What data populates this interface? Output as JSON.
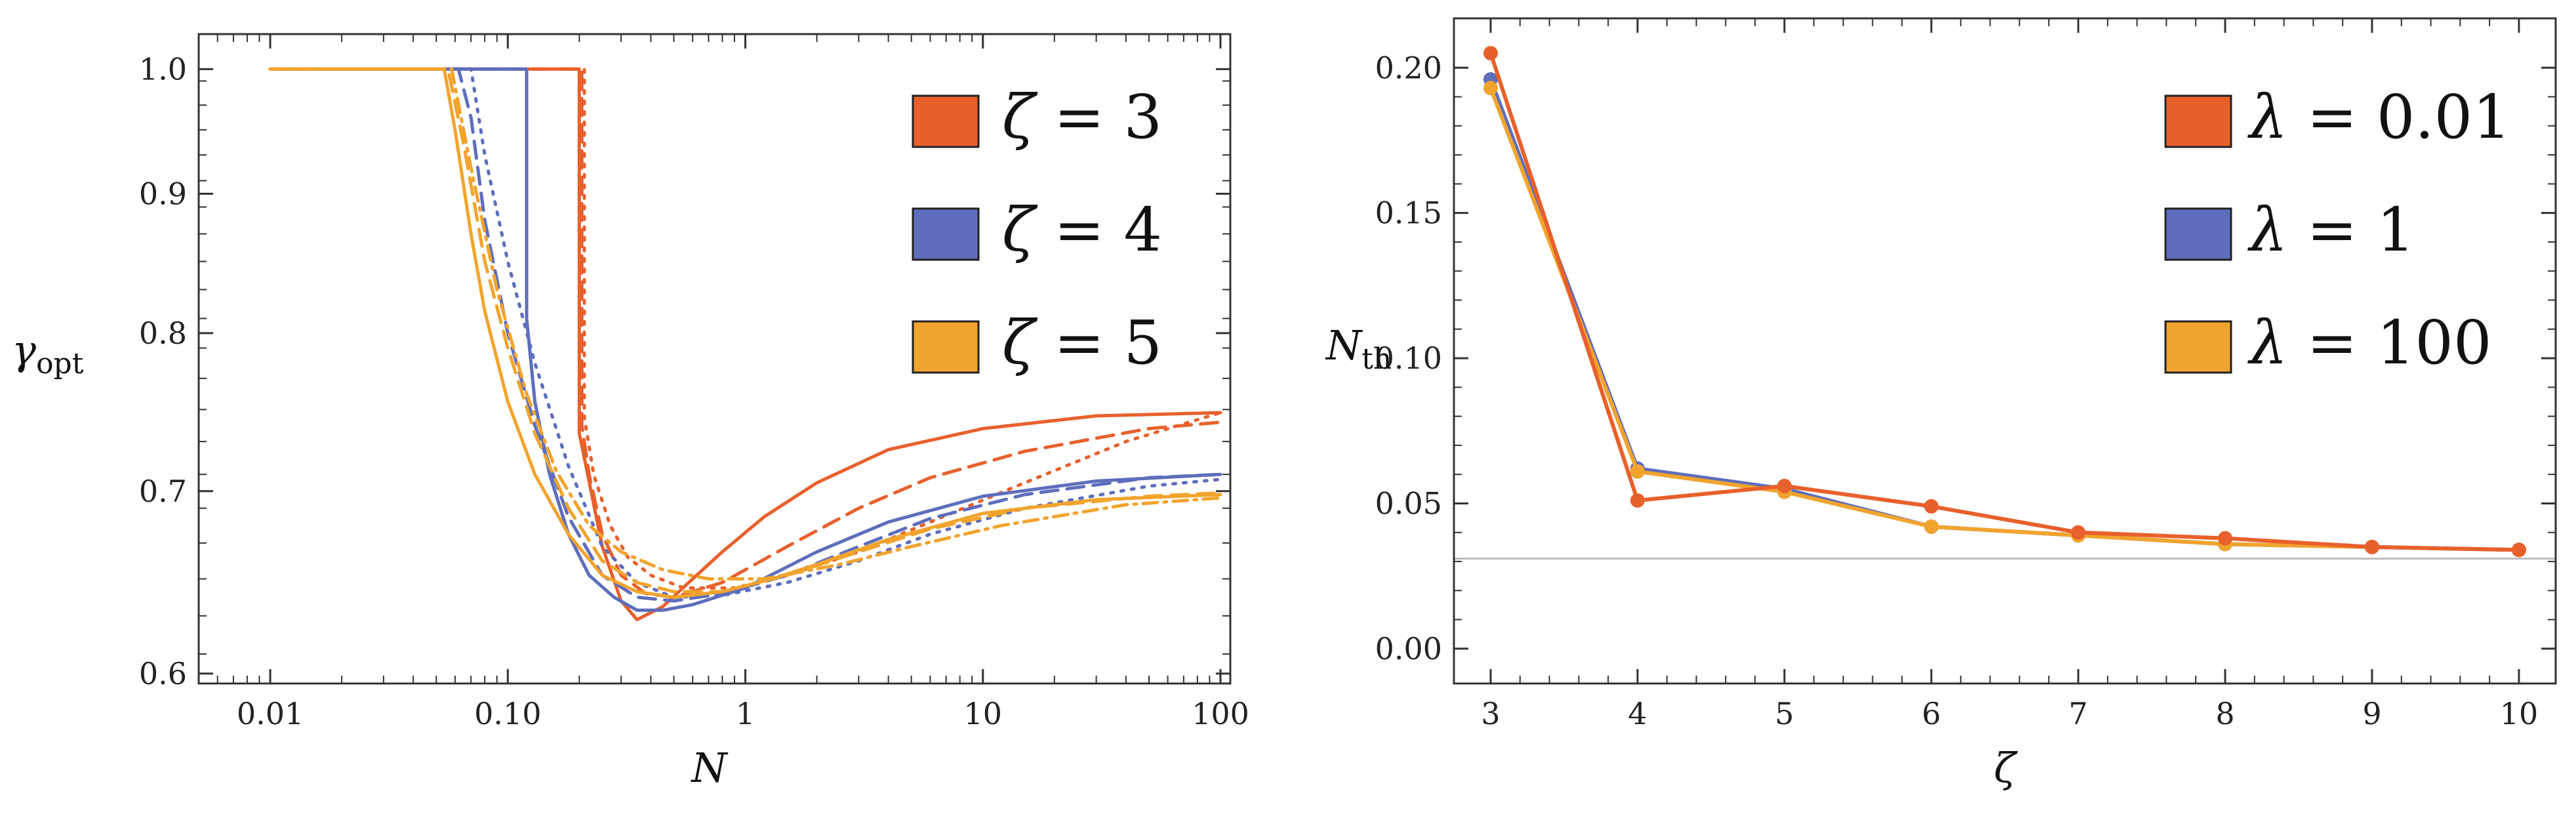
{
  "colors": {
    "red": "#e8602c",
    "blue": "#5e6ebc",
    "orange": "#f1a42d",
    "gray": "#bdbdbd",
    "axis": "#333333"
  },
  "chart_data": [
    {
      "type": "line",
      "xscale": "log",
      "yscale": "log",
      "xlabel": "N",
      "ylabel": {
        "base": "γ",
        "sub": "opt"
      },
      "xlim": [
        0.005,
        110
      ],
      "ylim": [
        0.595,
        1.03
      ],
      "xticks": [
        0.01,
        0.1,
        1,
        10,
        100
      ],
      "xtick_labels": [
        "0.01",
        "0.10",
        "1",
        "10",
        "100"
      ],
      "yticks": [
        0.6,
        0.7,
        0.8,
        0.9,
        1.0
      ],
      "ytick_labels": [
        "0.6",
        "0.7",
        "0.8",
        "0.9",
        "1.0"
      ],
      "legend": {
        "placement": "top-right",
        "entries": [
          {
            "symbol": "ζ",
            "text": " = 3",
            "color": "#e8602c"
          },
          {
            "symbol": "ζ",
            "text": " = 4",
            "color": "#5e6ebc"
          },
          {
            "symbol": "ζ",
            "text": " = 5",
            "color": "#f1a42d"
          }
        ]
      },
      "series": [
        {
          "name": "ζ = 3 (λ = 0.01)",
          "color": "#e8602c",
          "dash": "solid",
          "x": [
            0.01,
            0.2,
            0.2,
            0.21,
            0.25,
            0.3,
            0.35,
            0.45,
            0.6,
            0.8,
            1.2,
            2,
            4,
            10,
            30,
            100
          ],
          "y": [
            1.0,
            1.0,
            0.735,
            0.72,
            0.668,
            0.638,
            0.628,
            0.635,
            0.65,
            0.665,
            0.685,
            0.705,
            0.725,
            0.738,
            0.746,
            0.748
          ]
        },
        {
          "name": "ζ = 3 (λ = 1)",
          "color": "#e8602c",
          "dash": "dashed",
          "x": [
            0.01,
            0.205,
            0.205,
            0.22,
            0.25,
            0.3,
            0.38,
            0.5,
            0.8,
            1.5,
            3,
            6,
            15,
            50,
            100
          ],
          "y": [
            1.0,
            1.0,
            0.74,
            0.71,
            0.675,
            0.652,
            0.642,
            0.64,
            0.648,
            0.668,
            0.69,
            0.708,
            0.724,
            0.738,
            0.742
          ]
        },
        {
          "name": "ζ = 3 (λ = 100)",
          "color": "#e8602c",
          "dash": "dotted",
          "x": [
            0.01,
            0.21,
            0.21,
            0.23,
            0.27,
            0.32,
            0.4,
            0.55,
            0.9,
            1.5,
            3,
            6,
            15,
            40,
            100
          ],
          "y": [
            1.0,
            1.0,
            0.745,
            0.71,
            0.68,
            0.662,
            0.652,
            0.645,
            0.645,
            0.652,
            0.665,
            0.682,
            0.705,
            0.73,
            0.748
          ]
        },
        {
          "name": "ζ = 4 (λ = 0.01)",
          "color": "#5e6ebc",
          "dash": "solid",
          "x": [
            0.01,
            0.12,
            0.12,
            0.13,
            0.15,
            0.18,
            0.22,
            0.28,
            0.35,
            0.45,
            0.6,
            1,
            2,
            4,
            10,
            30,
            100
          ],
          "y": [
            1.0,
            1.0,
            0.81,
            0.755,
            0.71,
            0.675,
            0.652,
            0.64,
            0.633,
            0.633,
            0.636,
            0.645,
            0.665,
            0.682,
            0.697,
            0.706,
            0.71
          ]
        },
        {
          "name": "ζ = 4 (λ = 1)",
          "color": "#5e6ebc",
          "dash": "dashed",
          "x": [
            0.01,
            0.062,
            0.07,
            0.08,
            0.1,
            0.13,
            0.18,
            0.25,
            0.35,
            0.5,
            0.8,
            1.5,
            3,
            6,
            15,
            50,
            100
          ],
          "y": [
            1.0,
            1.0,
            0.96,
            0.88,
            0.8,
            0.74,
            0.685,
            0.652,
            0.64,
            0.638,
            0.642,
            0.652,
            0.668,
            0.684,
            0.698,
            0.708,
            0.71
          ]
        },
        {
          "name": "ζ = 4 (λ = 100)",
          "color": "#5e6ebc",
          "dash": "dotted",
          "x": [
            0.01,
            0.07,
            0.08,
            0.1,
            0.13,
            0.18,
            0.25,
            0.35,
            0.5,
            0.8,
            1.5,
            3,
            6,
            15,
            50,
            100
          ],
          "y": [
            1.0,
            1.0,
            0.93,
            0.85,
            0.78,
            0.715,
            0.668,
            0.648,
            0.64,
            0.641,
            0.648,
            0.66,
            0.675,
            0.69,
            0.703,
            0.707
          ]
        },
        {
          "name": "ζ = 5 (λ = 0.01)",
          "color": "#f1a42d",
          "dash": "solid",
          "x": [
            0.01,
            0.054,
            0.06,
            0.07,
            0.08,
            0.1,
            0.13,
            0.18,
            0.25,
            0.35,
            0.5,
            0.8,
            1.3,
            2,
            4,
            10,
            30,
            100
          ],
          "y": [
            1.0,
            1.0,
            0.95,
            0.87,
            0.815,
            0.755,
            0.71,
            0.675,
            0.652,
            0.643,
            0.64,
            0.643,
            0.65,
            0.658,
            0.672,
            0.687,
            0.695,
            0.698
          ]
        },
        {
          "name": "ζ = 5 (λ = 1)",
          "color": "#f1a42d",
          "dash": "dashed",
          "x": [
            0.01,
            0.056,
            0.065,
            0.08,
            0.1,
            0.13,
            0.18,
            0.25,
            0.35,
            0.5,
            0.8,
            1.5,
            3,
            6,
            15,
            50,
            100
          ],
          "y": [
            1.0,
            1.0,
            0.94,
            0.85,
            0.79,
            0.735,
            0.69,
            0.66,
            0.648,
            0.643,
            0.643,
            0.652,
            0.665,
            0.678,
            0.69,
            0.697,
            0.699
          ]
        },
        {
          "name": "ζ = 5 (λ = 100)",
          "color": "#f1a42d",
          "dash": "dotdash",
          "x": [
            0.01,
            0.058,
            0.07,
            0.09,
            0.12,
            0.16,
            0.22,
            0.3,
            0.45,
            0.7,
            1.2,
            2.5,
            5,
            12,
            40,
            100
          ],
          "y": [
            1.0,
            1.0,
            0.92,
            0.83,
            0.76,
            0.712,
            0.68,
            0.665,
            0.655,
            0.65,
            0.65,
            0.658,
            0.668,
            0.68,
            0.692,
            0.696
          ]
        }
      ]
    },
    {
      "type": "line",
      "markers": true,
      "xlabel": "ζ",
      "ylabel": {
        "base": "N",
        "sub": "th"
      },
      "xlim": [
        2.75,
        10.25
      ],
      "ylim": [
        -0.012,
        0.217
      ],
      "xticks": [
        3,
        4,
        5,
        6,
        7,
        8,
        9,
        10
      ],
      "xtick_labels": [
        "3",
        "4",
        "5",
        "6",
        "7",
        "8",
        "9",
        "10"
      ],
      "yticks": [
        0,
        0.05,
        0.1,
        0.15,
        0.2
      ],
      "ytick_labels": [
        "0.00",
        "0.05",
        "0.10",
        "0.15",
        "0.20"
      ],
      "hline": {
        "y": 0.031,
        "color": "#bdbdbd"
      },
      "legend": {
        "placement": "top-right",
        "entries": [
          {
            "symbol": "λ",
            "text": " = 0.01",
            "color": "#e8602c"
          },
          {
            "symbol": "λ",
            "text": " = 1",
            "color": "#5e6ebc"
          },
          {
            "symbol": "λ",
            "text": " = 100",
            "color": "#f1a42d"
          }
        ]
      },
      "series": [
        {
          "name": "λ = 1",
          "color": "#5e6ebc",
          "x": [
            3,
            4,
            5,
            6,
            7,
            8,
            9,
            10
          ],
          "y": [
            0.196,
            0.062,
            0.055,
            0.042,
            0.039,
            0.036,
            0.035,
            0.034
          ]
        },
        {
          "name": "λ = 100",
          "color": "#f1a42d",
          "x": [
            3,
            4,
            5,
            6,
            7,
            8,
            9,
            10
          ],
          "y": [
            0.193,
            0.061,
            0.054,
            0.042,
            0.039,
            0.036,
            0.035,
            0.034
          ]
        },
        {
          "name": "λ = 0.01",
          "color": "#e8602c",
          "x": [
            3,
            4,
            5,
            6,
            7,
            8,
            9,
            10
          ],
          "y": [
            0.205,
            0.051,
            0.056,
            0.049,
            0.04,
            0.038,
            0.035,
            0.034
          ]
        }
      ]
    }
  ]
}
